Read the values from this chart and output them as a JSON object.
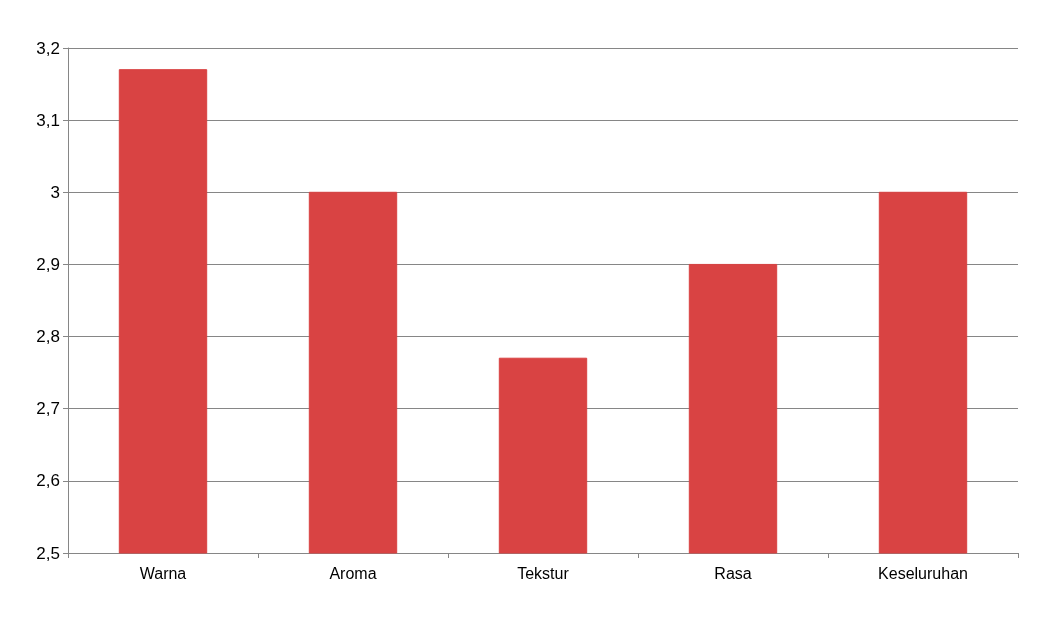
{
  "chart_data": {
    "type": "bar",
    "categories": [
      "Warna",
      "Aroma",
      "Tekstur",
      "Rasa",
      "Keseluruhan"
    ],
    "values": [
      3.17,
      3.0,
      2.77,
      2.9,
      3.0
    ],
    "color": "#d94343",
    "ylim": [
      2.5,
      3.2
    ],
    "yticks": [
      {
        "value": 2.5,
        "label": "2,5"
      },
      {
        "value": 2.6,
        "label": "2,6"
      },
      {
        "value": 2.7,
        "label": "2,7"
      },
      {
        "value": 2.8,
        "label": "2,8"
      },
      {
        "value": 2.9,
        "label": "2,9"
      },
      {
        "value": 3,
        "label": "3"
      },
      {
        "value": 3.1,
        "label": "3,1"
      },
      {
        "value": 3.2,
        "label": "3,2"
      }
    ],
    "grid": "y"
  }
}
